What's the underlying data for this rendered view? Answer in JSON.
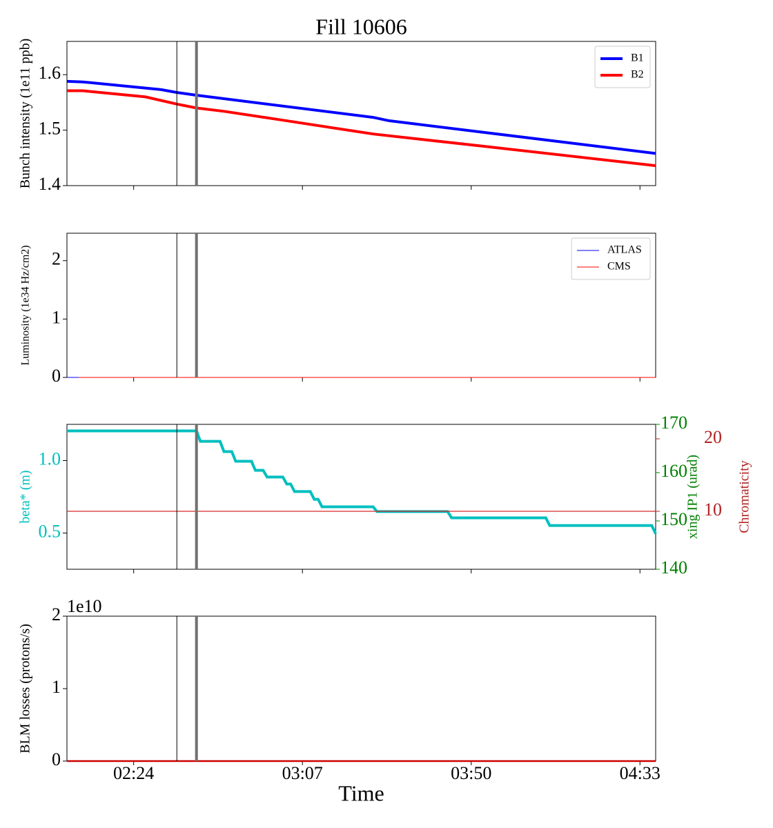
{
  "chart_data": [
    {
      "type": "line",
      "title": "Fill 10606",
      "ylabel": "Bunch intensity (1e11 ppb)",
      "xlim": [
        "02:07",
        "04:37"
      ],
      "ylim": [
        1.4,
        1.66
      ],
      "yticks": [
        1.4,
        1.5,
        1.6
      ],
      "legend": "upper right",
      "vlines": [
        {
          "x": "02:35",
          "color": "#000000"
        },
        {
          "x": "02:40",
          "color": "#707070"
        }
      ],
      "series": [
        {
          "name": "B1",
          "color": "#0000ff",
          "x": [
            "02:07",
            "02:11",
            "02:31",
            "02:35",
            "02:40",
            "03:25",
            "03:29",
            "04:37"
          ],
          "values": [
            1.588,
            1.587,
            1.573,
            1.568,
            1.563,
            1.523,
            1.517,
            1.458
          ]
        },
        {
          "name": "B2",
          "color": "#ff0000",
          "x": [
            "02:07",
            "02:11",
            "02:27",
            "02:35",
            "02:40",
            "02:47",
            "03:01",
            "03:25",
            "03:53",
            "04:37"
          ],
          "values": [
            1.571,
            1.571,
            1.56,
            1.547,
            1.54,
            1.534,
            1.519,
            1.493,
            1.471,
            1.436
          ]
        }
      ]
    },
    {
      "type": "line",
      "ylabel": "Luminosity (1e34 Hz/cm2)",
      "xlim": [
        "02:07",
        "04:37"
      ],
      "ylim": [
        0,
        2.47
      ],
      "yticks": [
        0,
        1,
        2
      ],
      "legend": "upper right",
      "vlines": [
        {
          "x": "02:35",
          "color": "#000000"
        },
        {
          "x": "02:40",
          "color": "#707070"
        }
      ],
      "series": [
        {
          "name": "ATLAS",
          "color": "#0000ff",
          "x": [
            "02:07",
            "04:37"
          ],
          "values": [
            0,
            0
          ]
        },
        {
          "name": "CMS",
          "color": "#ff0000",
          "x": [
            "02:10",
            "04:37"
          ],
          "values": [
            0,
            0
          ]
        }
      ]
    },
    {
      "type": "line",
      "ylabel": "beta* (m)",
      "y2label": "xing IP1 (urad)",
      "y3label": "Chromaticity",
      "xlim": [
        "02:07",
        "04:37"
      ],
      "ylim": [
        0.25,
        1.25
      ],
      "yticks": [
        0.5,
        {
          "value": 1,
          "label": "1.0"
        }
      ],
      "y2lim": [
        140,
        170
      ],
      "y2ticks": [
        140,
        150,
        160,
        170
      ],
      "y3lim": [
        2,
        22
      ],
      "y3ticks": [
        10,
        20
      ],
      "ycolor": "#00bfbf",
      "y2color": "#008000",
      "y3color": "#b22222",
      "vlines": [
        {
          "x": "02:35",
          "color": "#000000"
        },
        {
          "x": "02:40",
          "color": "#707070"
        }
      ],
      "series": [
        {
          "color": "#00bfbf",
          "x": [
            "02:07",
            "02:40",
            "02:41",
            "02:46",
            "02:47",
            "02:49",
            "02:50",
            "02:54",
            "02:55",
            "02:57",
            "02:58",
            "03:02",
            "03:03",
            "03:04",
            "03:05",
            "03:09",
            "03:10",
            "03:11",
            "03:12",
            "03:25",
            "03:26",
            "03:44",
            "03:45",
            "04:09",
            "04:10",
            "04:36",
            "04:37"
          ],
          "values": [
            1.205,
            1.205,
            1.133,
            1.133,
            1.062,
            1.062,
            0.995,
            0.995,
            0.933,
            0.933,
            0.886,
            0.886,
            0.838,
            0.838,
            0.786,
            0.786,
            0.733,
            0.733,
            0.681,
            0.681,
            0.648,
            0.648,
            0.605,
            0.605,
            0.552,
            0.552,
            0.495
          ]
        },
        {
          "color": "#d62728",
          "axis": "y3",
          "x": [
            "02:07",
            "04:37"
          ],
          "values": [
            10,
            10
          ]
        }
      ]
    },
    {
      "type": "line",
      "ylabel": "BLM losses (protons/s)",
      "xlabel": "Time",
      "offset_label": "1e10",
      "xlim": [
        "02:07",
        "04:37"
      ],
      "xticks": [
        "02:24",
        "03:07",
        "03:50",
        "04:33"
      ],
      "ylim": [
        0,
        20000000000
      ],
      "yticks": [
        0,
        {
          "value": 10000000000,
          "label": "1"
        },
        {
          "value": 20000000000,
          "label": "2"
        }
      ],
      "vlines": [
        {
          "x": "02:35",
          "color": "#000000"
        },
        {
          "x": "02:40",
          "color": "#707070"
        }
      ],
      "series": [
        {
          "color": "#cc0000",
          "x": [
            "02:07",
            "04:37"
          ],
          "values": [
            0,
            0
          ]
        }
      ]
    }
  ]
}
